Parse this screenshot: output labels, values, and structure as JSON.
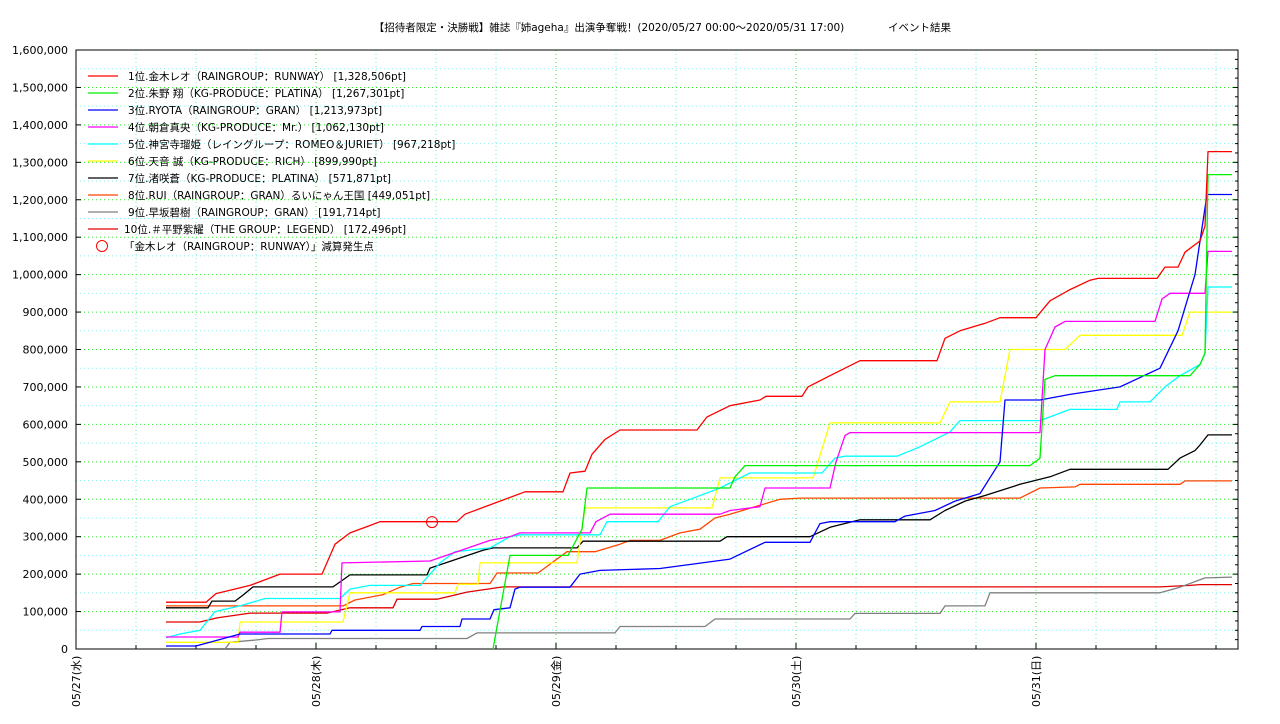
{
  "chart_data": {
    "type": "line",
    "title": "【招待者限定・決勝戦】雑誌『姉ageha』出演争奪戦！(2020/05/27 00:00〜2020/05/31 17:00)",
    "subtitle": "イベント結果",
    "xlabel": "",
    "ylabel": "",
    "x_unit": "hours since 05/27 00:00",
    "value_unit": "thousand pt",
    "xlim": [
      0,
      116.2
    ],
    "ylim": [
      0,
      1600000
    ],
    "grid": true,
    "legend_position": "top-left",
    "y_ticks": [
      "0",
      "100,000",
      "200,000",
      "300,000",
      "400,000",
      "500,000",
      "600,000",
      "700,000",
      "800,000",
      "900,000",
      "1,000,000",
      "1,100,000",
      "1,200,000",
      "1,300,000",
      "1,400,000",
      "1,500,000",
      "1,600,000"
    ],
    "x_ticks": [
      {
        "hour": 0,
        "label": "05/27(水)"
      },
      {
        "hour": 24,
        "label": "05/28(木)"
      },
      {
        "hour": 48,
        "label": "05/29(金)"
      },
      {
        "hour": 72,
        "label": "05/30(土)"
      },
      {
        "hour": 96,
        "label": "05/31(日)"
      }
    ],
    "series": [
      {
        "name": "1位.金木レオ（RAINGROUP：RUNWAY） [1,328,506pt]",
        "color": "#ff0000",
        "points": [
          [
            9,
            125
          ],
          [
            13,
            125
          ],
          [
            14,
            148
          ],
          [
            17.4,
            170
          ],
          [
            20.4,
            200
          ],
          [
            24.6,
            200
          ],
          [
            25.9,
            280
          ],
          [
            27.4,
            310
          ],
          [
            29.4,
            330
          ],
          [
            30.4,
            340
          ],
          [
            38.1,
            340
          ],
          [
            38.9,
            360
          ],
          [
            41.9,
            390
          ],
          [
            44.9,
            420
          ],
          [
            48.7,
            420
          ],
          [
            49.4,
            470
          ],
          [
            50.9,
            475
          ],
          [
            51.6,
            520
          ],
          [
            52.9,
            560
          ],
          [
            54.4,
            585
          ],
          [
            62.1,
            585
          ],
          [
            63.1,
            620
          ],
          [
            65.4,
            650
          ],
          [
            68.4,
            665
          ],
          [
            69,
            675
          ],
          [
            72.6,
            675
          ],
          [
            73.2,
            700
          ],
          [
            75.4,
            730
          ],
          [
            78.4,
            770
          ],
          [
            86.1,
            770
          ],
          [
            86.9,
            830
          ],
          [
            88.4,
            850
          ],
          [
            90.9,
            870
          ],
          [
            92.4,
            885
          ],
          [
            96,
            885
          ],
          [
            97.4,
            930
          ],
          [
            99.4,
            960
          ],
          [
            101.4,
            985
          ],
          [
            102.2,
            990
          ],
          [
            108.1,
            990
          ],
          [
            108.9,
            1020
          ],
          [
            110.2,
            1020
          ],
          [
            110.9,
            1060
          ],
          [
            112.4,
            1090
          ],
          [
            112.9,
            1130
          ],
          [
            113.2,
            1328.5
          ],
          [
            115.6,
            1328.5
          ]
        ]
      },
      {
        "name": "2位.朱野 翔（KG-PRODUCE：PLATINA） [1,267,301pt]",
        "color": "#00ee00",
        "points": [
          [
            41.7,
            0
          ],
          [
            43.4,
            250
          ],
          [
            49.2,
            250
          ],
          [
            50.2,
            300
          ],
          [
            50.6,
            320
          ],
          [
            51.1,
            430
          ],
          [
            65.4,
            430
          ],
          [
            65.9,
            460
          ],
          [
            66.9,
            490
          ],
          [
            95.4,
            490
          ],
          [
            96.4,
            510
          ],
          [
            96.9,
            720
          ],
          [
            97.9,
            730
          ],
          [
            111.4,
            730
          ],
          [
            112.4,
            760
          ],
          [
            112.9,
            790
          ],
          [
            113.2,
            1267.3
          ],
          [
            115.6,
            1267.3
          ]
        ]
      },
      {
        "name": "3位.RYOTA（RAINGROUP：GRAN） [1,213,973pt]",
        "color": "#0000ff",
        "points": [
          [
            9,
            8
          ],
          [
            12,
            8
          ],
          [
            16.4,
            40
          ],
          [
            25.4,
            40
          ],
          [
            25.6,
            50
          ],
          [
            34.4,
            50
          ],
          [
            34.6,
            60
          ],
          [
            38.4,
            60
          ],
          [
            38.6,
            80
          ],
          [
            41.4,
            80
          ],
          [
            41.8,
            105
          ],
          [
            43.4,
            110
          ],
          [
            43.9,
            160
          ],
          [
            44.4,
            165
          ],
          [
            49.4,
            165
          ],
          [
            50.4,
            200
          ],
          [
            52.4,
            210
          ],
          [
            58.4,
            215
          ],
          [
            65.4,
            240
          ],
          [
            68.9,
            285
          ],
          [
            73.4,
            285
          ],
          [
            74.4,
            335
          ],
          [
            75.4,
            340
          ],
          [
            81.9,
            340
          ],
          [
            82.9,
            355
          ],
          [
            85.9,
            370
          ],
          [
            87.9,
            395
          ],
          [
            90.4,
            415
          ],
          [
            92.4,
            500
          ],
          [
            92.9,
            665
          ],
          [
            96.4,
            665
          ],
          [
            99.4,
            680
          ],
          [
            104.4,
            700
          ],
          [
            108.4,
            750
          ],
          [
            110.2,
            850
          ],
          [
            111.9,
            1000
          ],
          [
            113.1,
            1214
          ],
          [
            115.6,
            1214
          ]
        ]
      },
      {
        "name": "4位.朝倉真央（KG-PRODUCE：Mr.） [1,062,130pt]",
        "color": "#ff00ff",
        "points": [
          [
            9,
            32
          ],
          [
            16.2,
            32
          ],
          [
            16.4,
            45
          ],
          [
            20.4,
            45
          ],
          [
            20.6,
            99
          ],
          [
            26.4,
            99
          ],
          [
            26.6,
            230
          ],
          [
            35.4,
            235
          ],
          [
            41.4,
            290
          ],
          [
            43.4,
            300
          ],
          [
            44.4,
            310
          ],
          [
            51.4,
            310
          ],
          [
            52,
            340
          ],
          [
            53.4,
            360
          ],
          [
            64.4,
            360
          ],
          [
            65.4,
            370
          ],
          [
            68.4,
            380
          ],
          [
            68.9,
            430
          ],
          [
            75.4,
            430
          ],
          [
            76,
            500
          ],
          [
            76.9,
            570
          ],
          [
            77.4,
            578
          ],
          [
            96.4,
            578
          ],
          [
            96.9,
            800
          ],
          [
            97.9,
            860
          ],
          [
            98.9,
            875
          ],
          [
            107.9,
            875
          ],
          [
            108.6,
            935
          ],
          [
            109.4,
            950
          ],
          [
            112.9,
            950
          ],
          [
            113.2,
            1062
          ],
          [
            115.6,
            1062
          ]
        ]
      },
      {
        "name": "5位.神宮寺瑠姫（レイングループ：ROMEO＆JURIET） [967,218pt]",
        "color": "#00ffff",
        "points": [
          [
            9,
            30
          ],
          [
            10.4,
            40
          ],
          [
            12.4,
            50
          ],
          [
            13.9,
            100
          ],
          [
            16.4,
            115
          ],
          [
            18.9,
            135
          ],
          [
            26.4,
            135
          ],
          [
            27.4,
            160
          ],
          [
            29.4,
            170
          ],
          [
            34.4,
            170
          ],
          [
            36.4,
            230
          ],
          [
            37.9,
            260
          ],
          [
            41.4,
            270
          ],
          [
            43.4,
            300
          ],
          [
            44.4,
            305
          ],
          [
            52.4,
            305
          ],
          [
            53.1,
            340
          ],
          [
            58.2,
            340
          ],
          [
            59.4,
            380
          ],
          [
            61.4,
            400
          ],
          [
            64.4,
            430
          ],
          [
            67.4,
            470
          ],
          [
            74.6,
            470
          ],
          [
            75.9,
            510
          ],
          [
            76.9,
            515
          ],
          [
            82.1,
            515
          ],
          [
            84.4,
            540
          ],
          [
            87.4,
            580
          ],
          [
            88.4,
            610
          ],
          [
            96.4,
            610
          ],
          [
            99.4,
            640
          ],
          [
            104.1,
            640
          ],
          [
            104.4,
            660
          ],
          [
            107.4,
            660
          ],
          [
            108.9,
            700
          ],
          [
            110.4,
            730
          ],
          [
            112.4,
            760
          ],
          [
            112.9,
            790
          ],
          [
            113.2,
            967
          ],
          [
            115.6,
            967
          ]
        ]
      },
      {
        "name": "6位.天音 誠（KG-PRODUCE：RICH） [899,990pt]",
        "color": "#ffff00",
        "points": [
          [
            9,
            18
          ],
          [
            16.2,
            18
          ],
          [
            16.4,
            72
          ],
          [
            26.7,
            72
          ],
          [
            27.4,
            150
          ],
          [
            37.9,
            150
          ],
          [
            38.2,
            173
          ],
          [
            40.2,
            173
          ],
          [
            40.4,
            230
          ],
          [
            50.1,
            230
          ],
          [
            50.9,
            377
          ],
          [
            63.6,
            377
          ],
          [
            64.4,
            457
          ],
          [
            73.7,
            457
          ],
          [
            75.4,
            604
          ],
          [
            86.4,
            604
          ],
          [
            87.4,
            660
          ],
          [
            92.4,
            660
          ],
          [
            93.4,
            800
          ],
          [
            98.9,
            800
          ],
          [
            100.4,
            838
          ],
          [
            110.6,
            838
          ],
          [
            111.4,
            900
          ],
          [
            115.6,
            900
          ]
        ]
      },
      {
        "name": "7位.渚咲蒼（KG-PRODUCE：PLATINA） [571,871pt]",
        "color": "#000000",
        "points": [
          [
            9,
            110
          ],
          [
            13.2,
            110
          ],
          [
            13.6,
            128
          ],
          [
            15.9,
            128
          ],
          [
            16.7,
            144
          ],
          [
            17.7,
            166
          ],
          [
            25.7,
            166
          ],
          [
            27.4,
            198
          ],
          [
            35.1,
            198
          ],
          [
            35.4,
            216
          ],
          [
            40.7,
            264
          ],
          [
            41.7,
            270
          ],
          [
            50.1,
            270
          ],
          [
            50.7,
            288
          ],
          [
            64.4,
            288
          ],
          [
            65.1,
            300
          ],
          [
            73.4,
            300
          ],
          [
            75.4,
            325
          ],
          [
            78.4,
            345
          ],
          [
            85.4,
            345
          ],
          [
            86.9,
            370
          ],
          [
            88.9,
            395
          ],
          [
            90.9,
            410
          ],
          [
            94.4,
            440
          ],
          [
            97.4,
            460
          ],
          [
            99.4,
            480
          ],
          [
            109.2,
            480
          ],
          [
            110.4,
            510
          ],
          [
            111.9,
            530
          ],
          [
            112.4,
            545
          ],
          [
            113.2,
            572
          ],
          [
            115.6,
            572
          ]
        ]
      },
      {
        "name": "8位.RUI（RAINGROUP：GRAN）るいにゃん王国 [449,051pt]",
        "color": "#ff4500",
        "points": [
          [
            9,
            115
          ],
          [
            26.7,
            115
          ],
          [
            27.9,
            131
          ],
          [
            30.7,
            145
          ],
          [
            32.4,
            165
          ],
          [
            33.7,
            175
          ],
          [
            41.4,
            175
          ],
          [
            42.1,
            203
          ],
          [
            46.2,
            203
          ],
          [
            49.1,
            260
          ],
          [
            51.9,
            260
          ],
          [
            54.4,
            280
          ],
          [
            55.4,
            290
          ],
          [
            58.4,
            290
          ],
          [
            60.4,
            310
          ],
          [
            62.4,
            320
          ],
          [
            63.9,
            350
          ],
          [
            65.4,
            360
          ],
          [
            67.9,
            380
          ],
          [
            70.4,
            400
          ],
          [
            72.4,
            403
          ],
          [
            94.4,
            403
          ],
          [
            96.4,
            430
          ],
          [
            99.9,
            433
          ],
          [
            100.4,
            440
          ],
          [
            110.4,
            440
          ],
          [
            110.9,
            449
          ],
          [
            115.6,
            449
          ]
        ]
      },
      {
        "name": "9位.早坂碧樹（RAINGROUP：GRAN） [191,714pt]",
        "color": "#808080",
        "points": [
          [
            14.9,
            0
          ],
          [
            15.4,
            18
          ],
          [
            18,
            24
          ],
          [
            19.2,
            28
          ],
          [
            39.1,
            28
          ],
          [
            40.1,
            43
          ],
          [
            53.9,
            43
          ],
          [
            54.4,
            60
          ],
          [
            62.9,
            60
          ],
          [
            63.9,
            80
          ],
          [
            77.4,
            80
          ],
          [
            77.9,
            95
          ],
          [
            86.4,
            95
          ],
          [
            86.9,
            115
          ],
          [
            90.9,
            115
          ],
          [
            91.4,
            150
          ],
          [
            108.4,
            150
          ],
          [
            110.4,
            165
          ],
          [
            112.9,
            190
          ],
          [
            115.6,
            192
          ]
        ]
      },
      {
        "name": "10位.＃平野紫耀（THE GROUP：LEGEND） [172,496pt]",
        "color": "#e00000",
        "points": [
          [
            9,
            72
          ],
          [
            12.4,
            72
          ],
          [
            14.1,
            83
          ],
          [
            17.4,
            96
          ],
          [
            25.1,
            96
          ],
          [
            27.4,
            110
          ],
          [
            31.7,
            110
          ],
          [
            32.1,
            133
          ],
          [
            36.1,
            133
          ],
          [
            39.1,
            152
          ],
          [
            42.7,
            166
          ],
          [
            108.4,
            166
          ],
          [
            111.4,
            170
          ],
          [
            112.4,
            172
          ],
          [
            115.6,
            172
          ]
        ]
      }
    ],
    "annotation": {
      "label": "「金木レオ（RAINGROUP：RUNWAY）」減算発生点",
      "color": "#ff0000",
      "point": [
        35.6,
        339
      ]
    }
  }
}
